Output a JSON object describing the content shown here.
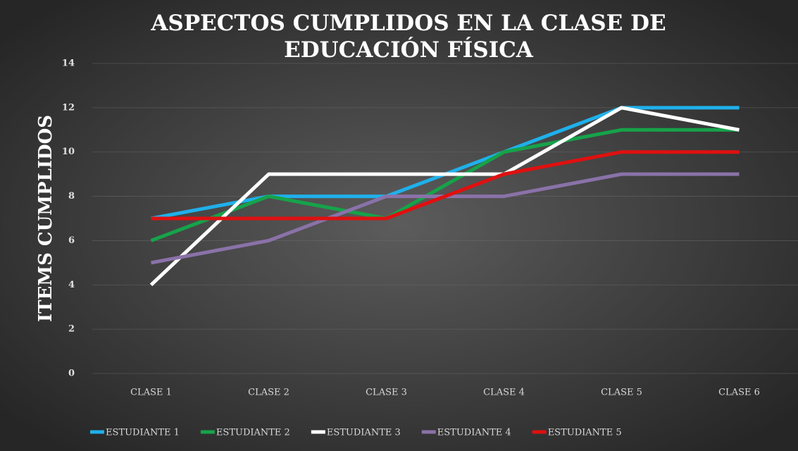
{
  "chart_data": {
    "type": "line",
    "title": "ASPECTOS CUMPLIDOS EN LA CLASE DE EDUCACIÓN FÍSICA",
    "y_label": "ITEMS CUMPLIDOS",
    "categories": [
      "CLASE 1",
      "CLASE 2",
      "CLASE 3",
      "CLASE 4",
      "CLASE 5",
      "CLASE 6"
    ],
    "series": [
      {
        "name": "ESTUDIANTE 1",
        "color": "#1fb0ea",
        "values": [
          7,
          8,
          8,
          10,
          12,
          12
        ]
      },
      {
        "name": "ESTUDIANTE 2",
        "color": "#16a34a",
        "values": [
          6,
          8,
          7,
          10,
          11,
          11
        ]
      },
      {
        "name": "ESTUDIANTE 3",
        "color": "#ffffff",
        "values": [
          4,
          9,
          9,
          9,
          12,
          11
        ]
      },
      {
        "name": "ESTUDIANTE 4",
        "color": "#8a72a9",
        "values": [
          5,
          6,
          8,
          8,
          9,
          9
        ]
      },
      {
        "name": "ESTUDIANTE 5",
        "color": "#e01010",
        "values": [
          7,
          7,
          7,
          9,
          10,
          10
        ]
      }
    ],
    "ylim": [
      0,
      14
    ],
    "yticks": [
      0,
      2,
      4,
      6,
      8,
      10,
      12,
      14
    ],
    "grid": true,
    "legend": "bottom"
  }
}
